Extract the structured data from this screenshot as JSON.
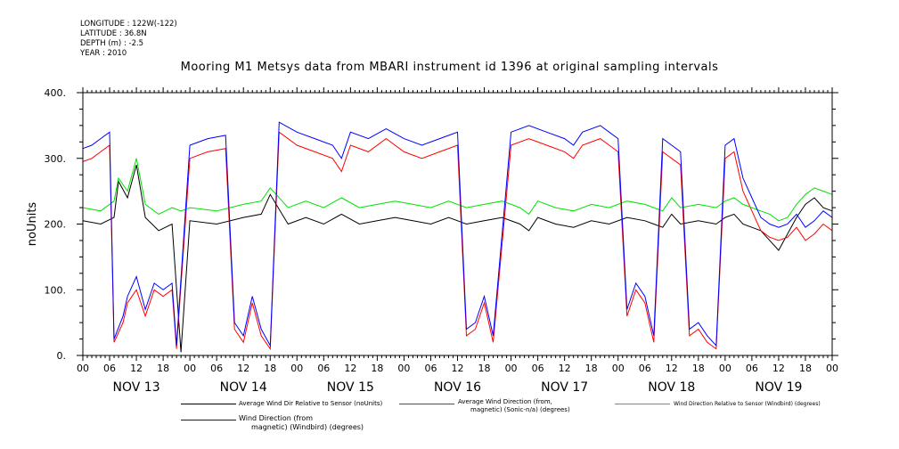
{
  "metadata": {
    "longitude": "LONGITUDE : 122W(-122)",
    "latitude": "LATITUDE : 36.8N",
    "depth": "DEPTH (m) : -2.5",
    "year": "YEAR : 2010"
  },
  "legend": {
    "series1": "Average Wind Dir Relative to Sensor (noUnits)",
    "series2_line1": "Average Wind Direction (from,",
    "series2_line2": "magnetic) (Sonic-n/a) (degrees)",
    "series3": "Wind Direction Relative to Sensor (Windbird) (degrees)",
    "series4_line1": "Wind Direction (from",
    "series4_line2": "magnetic) (Windbird) (degrees)"
  },
  "colors": {
    "black": "#000000",
    "red": "#ff0000",
    "green": "#00e000",
    "blue": "#0000ff"
  },
  "chart_data": {
    "type": "line",
    "title": "Mooring M1 Metsys data from MBARI instrument id 1396 at original sampling intervals",
    "ylabel": "noUnits",
    "xlabel": "",
    "ylim": [
      0,
      400
    ],
    "y_ticks": [
      "0.",
      "100.",
      "200.",
      "300.",
      "400."
    ],
    "x_hour_ticks": [
      "00",
      "06",
      "12",
      "18",
      "00",
      "06",
      "12",
      "18",
      "00",
      "06",
      "12",
      "18",
      "00",
      "06",
      "12",
      "18",
      "00",
      "06",
      "12",
      "18",
      "00",
      "06",
      "12",
      "18",
      "00",
      "06",
      "12",
      "18",
      "00"
    ],
    "x_day_labels": [
      "NOV 13",
      "NOV 14",
      "NOV 15",
      "NOV 16",
      "NOV 17",
      "NOV 18",
      "NOV 19"
    ],
    "x_range_hours": [
      0,
      168
    ],
    "series": [
      {
        "name": "Average Wind Dir Relative to Sensor (noUnits)",
        "color": "#000000",
        "points": [
          [
            0,
            205
          ],
          [
            4,
            200
          ],
          [
            7,
            210
          ],
          [
            8,
            265
          ],
          [
            10,
            240
          ],
          [
            12,
            290
          ],
          [
            14,
            210
          ],
          [
            17,
            190
          ],
          [
            20,
            200
          ],
          [
            22,
            5
          ],
          [
            24,
            205
          ],
          [
            30,
            200
          ],
          [
            36,
            210
          ],
          [
            40,
            215
          ],
          [
            42,
            245
          ],
          [
            46,
            200
          ],
          [
            50,
            210
          ],
          [
            54,
            200
          ],
          [
            58,
            215
          ],
          [
            62,
            200
          ],
          [
            66,
            205
          ],
          [
            70,
            210
          ],
          [
            74,
            205
          ],
          [
            78,
            200
          ],
          [
            82,
            210
          ],
          [
            86,
            200
          ],
          [
            90,
            205
          ],
          [
            94,
            210
          ],
          [
            98,
            200
          ],
          [
            100,
            190
          ],
          [
            102,
            210
          ],
          [
            106,
            200
          ],
          [
            110,
            195
          ],
          [
            114,
            205
          ],
          [
            118,
            200
          ],
          [
            122,
            210
          ],
          [
            126,
            205
          ],
          [
            128,
            200
          ],
          [
            130,
            195
          ],
          [
            132,
            215
          ],
          [
            134,
            200
          ],
          [
            138,
            205
          ],
          [
            142,
            200
          ],
          [
            144,
            210
          ],
          [
            146,
            215
          ],
          [
            148,
            200
          ],
          [
            150,
            195
          ],
          [
            152,
            190
          ],
          [
            154,
            175
          ],
          [
            156,
            160
          ],
          [
            158,
            185
          ],
          [
            160,
            210
          ],
          [
            162,
            230
          ],
          [
            164,
            240
          ],
          [
            166,
            225
          ],
          [
            168,
            220
          ]
        ]
      },
      {
        "name": "Average Wind Direction (from, magnetic) (Sonic-n/a) (degrees)",
        "color": "#ff0000",
        "points": [
          [
            0,
            295
          ],
          [
            2,
            300
          ],
          [
            4,
            310
          ],
          [
            6,
            320
          ],
          [
            7,
            20
          ],
          [
            9,
            50
          ],
          [
            10,
            80
          ],
          [
            12,
            100
          ],
          [
            14,
            60
          ],
          [
            16,
            100
          ],
          [
            18,
            90
          ],
          [
            20,
            100
          ],
          [
            21,
            10
          ],
          [
            24,
            300
          ],
          [
            28,
            310
          ],
          [
            32,
            315
          ],
          [
            34,
            40
          ],
          [
            36,
            20
          ],
          [
            38,
            80
          ],
          [
            40,
            30
          ],
          [
            42,
            10
          ],
          [
            44,
            340
          ],
          [
            48,
            320
          ],
          [
            52,
            310
          ],
          [
            56,
            300
          ],
          [
            58,
            280
          ],
          [
            60,
            320
          ],
          [
            64,
            310
          ],
          [
            68,
            330
          ],
          [
            72,
            310
          ],
          [
            76,
            300
          ],
          [
            80,
            310
          ],
          [
            84,
            320
          ],
          [
            86,
            30
          ],
          [
            88,
            40
          ],
          [
            90,
            80
          ],
          [
            92,
            20
          ],
          [
            96,
            320
          ],
          [
            100,
            330
          ],
          [
            104,
            320
          ],
          [
            108,
            310
          ],
          [
            110,
            300
          ],
          [
            112,
            320
          ],
          [
            116,
            330
          ],
          [
            118,
            320
          ],
          [
            120,
            310
          ],
          [
            122,
            60
          ],
          [
            124,
            100
          ],
          [
            126,
            80
          ],
          [
            128,
            20
          ],
          [
            130,
            310
          ],
          [
            132,
            300
          ],
          [
            134,
            290
          ],
          [
            136,
            30
          ],
          [
            138,
            40
          ],
          [
            140,
            20
          ],
          [
            142,
            10
          ],
          [
            144,
            300
          ],
          [
            146,
            310
          ],
          [
            148,
            250
          ],
          [
            150,
            220
          ],
          [
            152,
            190
          ],
          [
            154,
            180
          ],
          [
            156,
            175
          ],
          [
            158,
            180
          ],
          [
            160,
            195
          ],
          [
            162,
            175
          ],
          [
            164,
            185
          ],
          [
            166,
            200
          ],
          [
            168,
            190
          ]
        ]
      },
      {
        "name": "Wind Direction Relative to Sensor (Windbird) (degrees)",
        "color": "#00e000",
        "points": [
          [
            0,
            225
          ],
          [
            4,
            220
          ],
          [
            7,
            235
          ],
          [
            8,
            270
          ],
          [
            10,
            250
          ],
          [
            12,
            300
          ],
          [
            14,
            230
          ],
          [
            17,
            215
          ],
          [
            20,
            225
          ],
          [
            22,
            220
          ],
          [
            24,
            225
          ],
          [
            30,
            220
          ],
          [
            36,
            230
          ],
          [
            40,
            235
          ],
          [
            42,
            255
          ],
          [
            46,
            225
          ],
          [
            50,
            235
          ],
          [
            54,
            225
          ],
          [
            58,
            240
          ],
          [
            62,
            225
          ],
          [
            66,
            230
          ],
          [
            70,
            235
          ],
          [
            74,
            230
          ],
          [
            78,
            225
          ],
          [
            82,
            235
          ],
          [
            86,
            225
          ],
          [
            90,
            230
          ],
          [
            94,
            235
          ],
          [
            98,
            225
          ],
          [
            100,
            215
          ],
          [
            102,
            235
          ],
          [
            106,
            225
          ],
          [
            110,
            220
          ],
          [
            114,
            230
          ],
          [
            118,
            225
          ],
          [
            122,
            235
          ],
          [
            126,
            230
          ],
          [
            128,
            225
          ],
          [
            130,
            220
          ],
          [
            132,
            240
          ],
          [
            134,
            225
          ],
          [
            138,
            230
          ],
          [
            142,
            225
          ],
          [
            144,
            235
          ],
          [
            146,
            240
          ],
          [
            148,
            230
          ],
          [
            150,
            225
          ],
          [
            152,
            220
          ],
          [
            154,
            215
          ],
          [
            156,
            205
          ],
          [
            158,
            210
          ],
          [
            160,
            230
          ],
          [
            162,
            245
          ],
          [
            164,
            255
          ],
          [
            166,
            250
          ],
          [
            168,
            245
          ]
        ]
      },
      {
        "name": "Wind Direction (from magnetic) (Windbird) (degrees)",
        "color": "#0000ff",
        "points": [
          [
            0,
            315
          ],
          [
            2,
            320
          ],
          [
            4,
            330
          ],
          [
            6,
            340
          ],
          [
            7,
            25
          ],
          [
            9,
            60
          ],
          [
            10,
            90
          ],
          [
            12,
            120
          ],
          [
            14,
            70
          ],
          [
            16,
            110
          ],
          [
            18,
            100
          ],
          [
            20,
            110
          ],
          [
            21,
            15
          ],
          [
            24,
            320
          ],
          [
            28,
            330
          ],
          [
            32,
            335
          ],
          [
            34,
            50
          ],
          [
            36,
            30
          ],
          [
            38,
            90
          ],
          [
            40,
            40
          ],
          [
            42,
            15
          ],
          [
            44,
            355
          ],
          [
            48,
            340
          ],
          [
            52,
            330
          ],
          [
            56,
            320
          ],
          [
            58,
            300
          ],
          [
            60,
            340
          ],
          [
            64,
            330
          ],
          [
            68,
            345
          ],
          [
            72,
            330
          ],
          [
            76,
            320
          ],
          [
            80,
            330
          ],
          [
            84,
            340
          ],
          [
            86,
            40
          ],
          [
            88,
            50
          ],
          [
            90,
            90
          ],
          [
            92,
            30
          ],
          [
            96,
            340
          ],
          [
            100,
            350
          ],
          [
            104,
            340
          ],
          [
            108,
            330
          ],
          [
            110,
            320
          ],
          [
            112,
            340
          ],
          [
            116,
            350
          ],
          [
            118,
            340
          ],
          [
            120,
            330
          ],
          [
            122,
            70
          ],
          [
            124,
            110
          ],
          [
            126,
            90
          ],
          [
            128,
            30
          ],
          [
            130,
            330
          ],
          [
            132,
            320
          ],
          [
            134,
            310
          ],
          [
            136,
            40
          ],
          [
            138,
            50
          ],
          [
            140,
            30
          ],
          [
            142,
            15
          ],
          [
            144,
            320
          ],
          [
            146,
            330
          ],
          [
            148,
            270
          ],
          [
            150,
            240
          ],
          [
            152,
            210
          ],
          [
            154,
            200
          ],
          [
            156,
            195
          ],
          [
            158,
            200
          ],
          [
            160,
            215
          ],
          [
            162,
            195
          ],
          [
            164,
            205
          ],
          [
            166,
            220
          ],
          [
            168,
            210
          ]
        ]
      }
    ]
  }
}
